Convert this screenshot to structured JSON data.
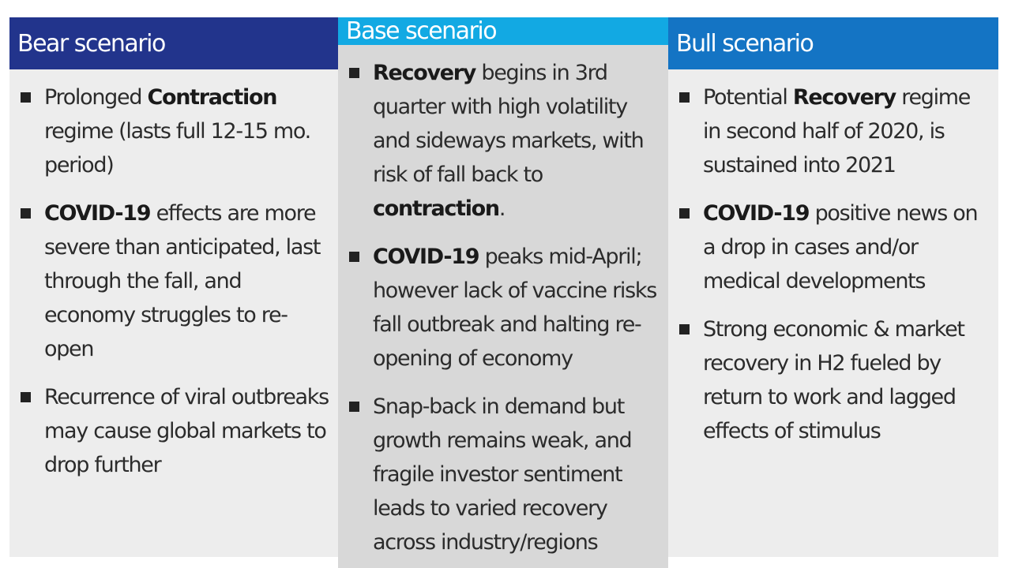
{
  "colors": {
    "bear_header": "#22348C",
    "base_header": "#12A9E3",
    "bull_header": "#1474C4",
    "bear_body": "#EDEDED",
    "base_body": "#D8D8D8",
    "bull_body": "#EDEDED",
    "bullet": "#222222"
  },
  "icons": [
    "bullet-square-icon"
  ],
  "columns": [
    {
      "key": "bear",
      "title": "Bear scenario",
      "bullets": [
        [
          {
            "text": "Prolonged "
          },
          {
            "text": "Contraction",
            "bold": true
          },
          {
            "text": " regime (lasts full 12-15 mo. period)"
          }
        ],
        [
          {
            "text": "COVID-19",
            "bold": true
          },
          {
            "text": " effects are more severe than anticipated, last through the fall, and economy struggles to re-open"
          }
        ],
        [
          {
            "text": "Recurrence of viral outbreaks may cause global markets to drop further"
          }
        ]
      ]
    },
    {
      "key": "base",
      "title": "Base scenario",
      "bullets": [
        [
          {
            "text": "Recovery",
            "bold": true
          },
          {
            "text": " begins in 3rd quarter with high volatility and sideways markets, with risk of fall back to "
          },
          {
            "text": "contraction",
            "bold": true
          },
          {
            "text": "."
          }
        ],
        [
          {
            "text": "COVID-19",
            "bold": true
          },
          {
            "text": " peaks mid-April; however lack of vaccine risks fall outbreak and halting re-opening of economy"
          }
        ],
        [
          {
            "text": "Snap-back in demand but growth remains weak, and fragile investor sentiment leads to varied recovery across industry/regions"
          }
        ]
      ]
    },
    {
      "key": "bull",
      "title": "Bull scenario",
      "bullets": [
        [
          {
            "text": "Potential "
          },
          {
            "text": "Recovery",
            "bold": true
          },
          {
            "text": " regime in second half of 2020, is sustained into 2021"
          }
        ],
        [
          {
            "text": "COVID-19",
            "bold": true
          },
          {
            "text": " positive news on a drop in cases and/or medical developments"
          }
        ],
        [
          {
            "text": "Strong economic & market recovery in H2 fueled by return to work and lagged effects of stimulus"
          }
        ]
      ]
    }
  ]
}
